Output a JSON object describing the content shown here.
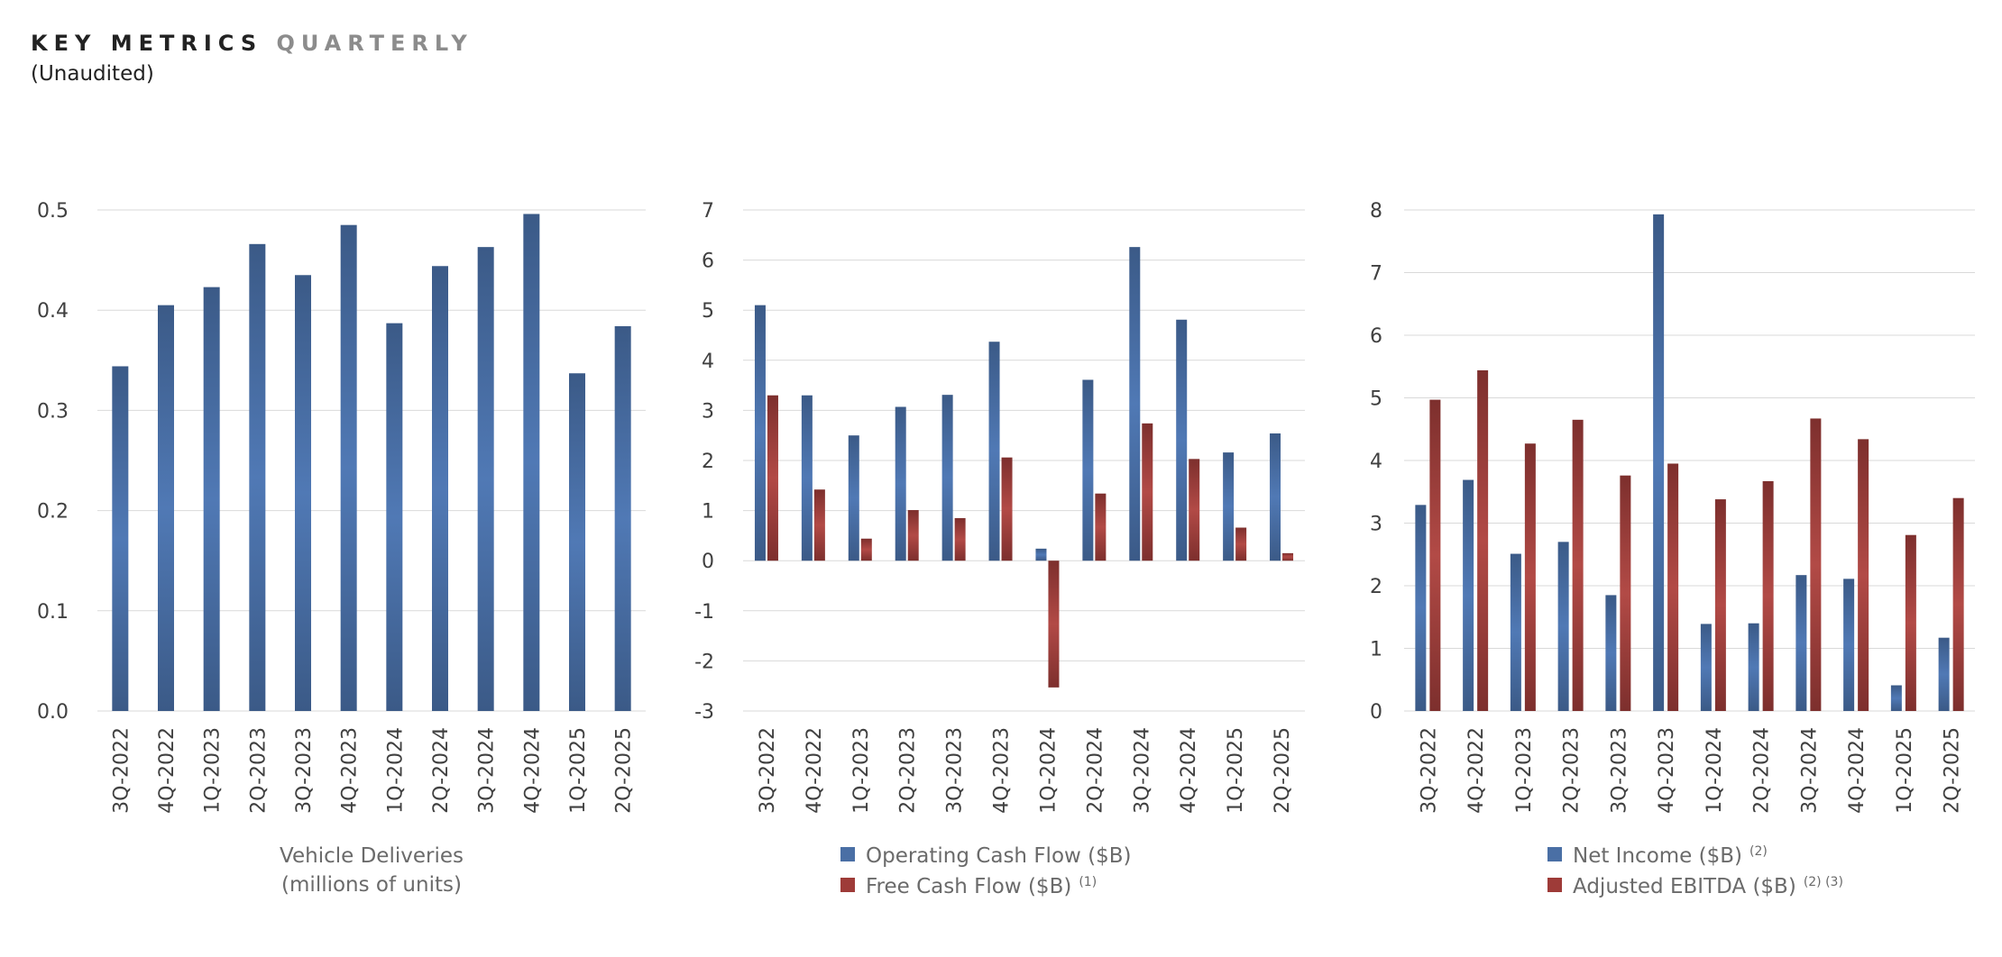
{
  "header": {
    "title_main": "KEY METRICS",
    "title_sub": "QUARTERLY",
    "subtitle": "(Unaudited)"
  },
  "colors": {
    "blue": "#4a6fa5",
    "red": "#9e3b38",
    "grid": "#d9d9d9"
  },
  "chart_data": [
    {
      "type": "bar",
      "categories": [
        "3Q-2022",
        "4Q-2022",
        "1Q-2023",
        "2Q-2023",
        "3Q-2023",
        "4Q-2023",
        "1Q-2024",
        "2Q-2024",
        "3Q-2024",
        "4Q-2024",
        "1Q-2025",
        "2Q-2025"
      ],
      "series": [
        {
          "name": "Vehicle Deliveries",
          "values": [
            0.344,
            0.405,
            0.423,
            0.466,
            0.435,
            0.485,
            0.387,
            0.444,
            0.463,
            0.496,
            0.337,
            0.384
          ]
        }
      ],
      "yticks": [
        "0.5",
        "0.4",
        "0.3",
        "0.2",
        "0.1",
        "0.0"
      ],
      "ylim": [
        0,
        0.5
      ],
      "caption": [
        "Vehicle Deliveries",
        "(millions of units)"
      ]
    },
    {
      "type": "bar",
      "categories": [
        "3Q-2022",
        "4Q-2022",
        "1Q-2023",
        "2Q-2023",
        "3Q-2023",
        "4Q-2023",
        "1Q-2024",
        "2Q-2024",
        "3Q-2024",
        "4Q-2024",
        "1Q-2025",
        "2Q-2025"
      ],
      "series": [
        {
          "name": "Operating Cash Flow ($B)",
          "values": [
            5.1,
            3.3,
            2.5,
            3.07,
            3.31,
            4.37,
            0.24,
            3.61,
            6.26,
            4.81,
            2.16,
            2.54
          ]
        },
        {
          "name": "Free Cash Flow ($B)",
          "values": [
            3.3,
            1.42,
            0.44,
            1.01,
            0.85,
            2.06,
            -2.53,
            1.34,
            2.74,
            2.03,
            0.66,
            0.15
          ]
        }
      ],
      "yticks": [
        "7",
        "6",
        "5",
        "4",
        "3",
        "2",
        "1",
        "0",
        "-1",
        "-2",
        "-3"
      ],
      "ylim": [
        -3,
        7
      ],
      "legend": [
        {
          "label": "Operating Cash Flow ($B)",
          "note": ""
        },
        {
          "label": "Free Cash Flow ($B)",
          "note": "(1)"
        }
      ]
    },
    {
      "type": "bar",
      "categories": [
        "3Q-2022",
        "4Q-2022",
        "1Q-2023",
        "2Q-2023",
        "3Q-2023",
        "4Q-2023",
        "1Q-2024",
        "2Q-2024",
        "3Q-2024",
        "4Q-2024",
        "1Q-2025",
        "2Q-2025"
      ],
      "series": [
        {
          "name": "Net Income ($B)",
          "values": [
            3.29,
            3.69,
            2.51,
            2.7,
            1.85,
            7.93,
            1.39,
            1.4,
            2.17,
            2.11,
            0.41,
            1.17
          ]
        },
        {
          "name": "Adjusted EBITDA ($B)",
          "values": [
            4.97,
            5.44,
            4.27,
            4.65,
            3.76,
            3.95,
            3.38,
            3.67,
            4.67,
            4.34,
            2.81,
            3.4
          ]
        }
      ],
      "yticks": [
        "8",
        "7",
        "6",
        "5",
        "4",
        "3",
        "2",
        "1",
        "0"
      ],
      "ylim": [
        0,
        8
      ],
      "legend": [
        {
          "label": "Net Income ($B)",
          "note": "(2)"
        },
        {
          "label": "Adjusted EBITDA ($B)",
          "note": "(2) (3)"
        }
      ]
    }
  ]
}
